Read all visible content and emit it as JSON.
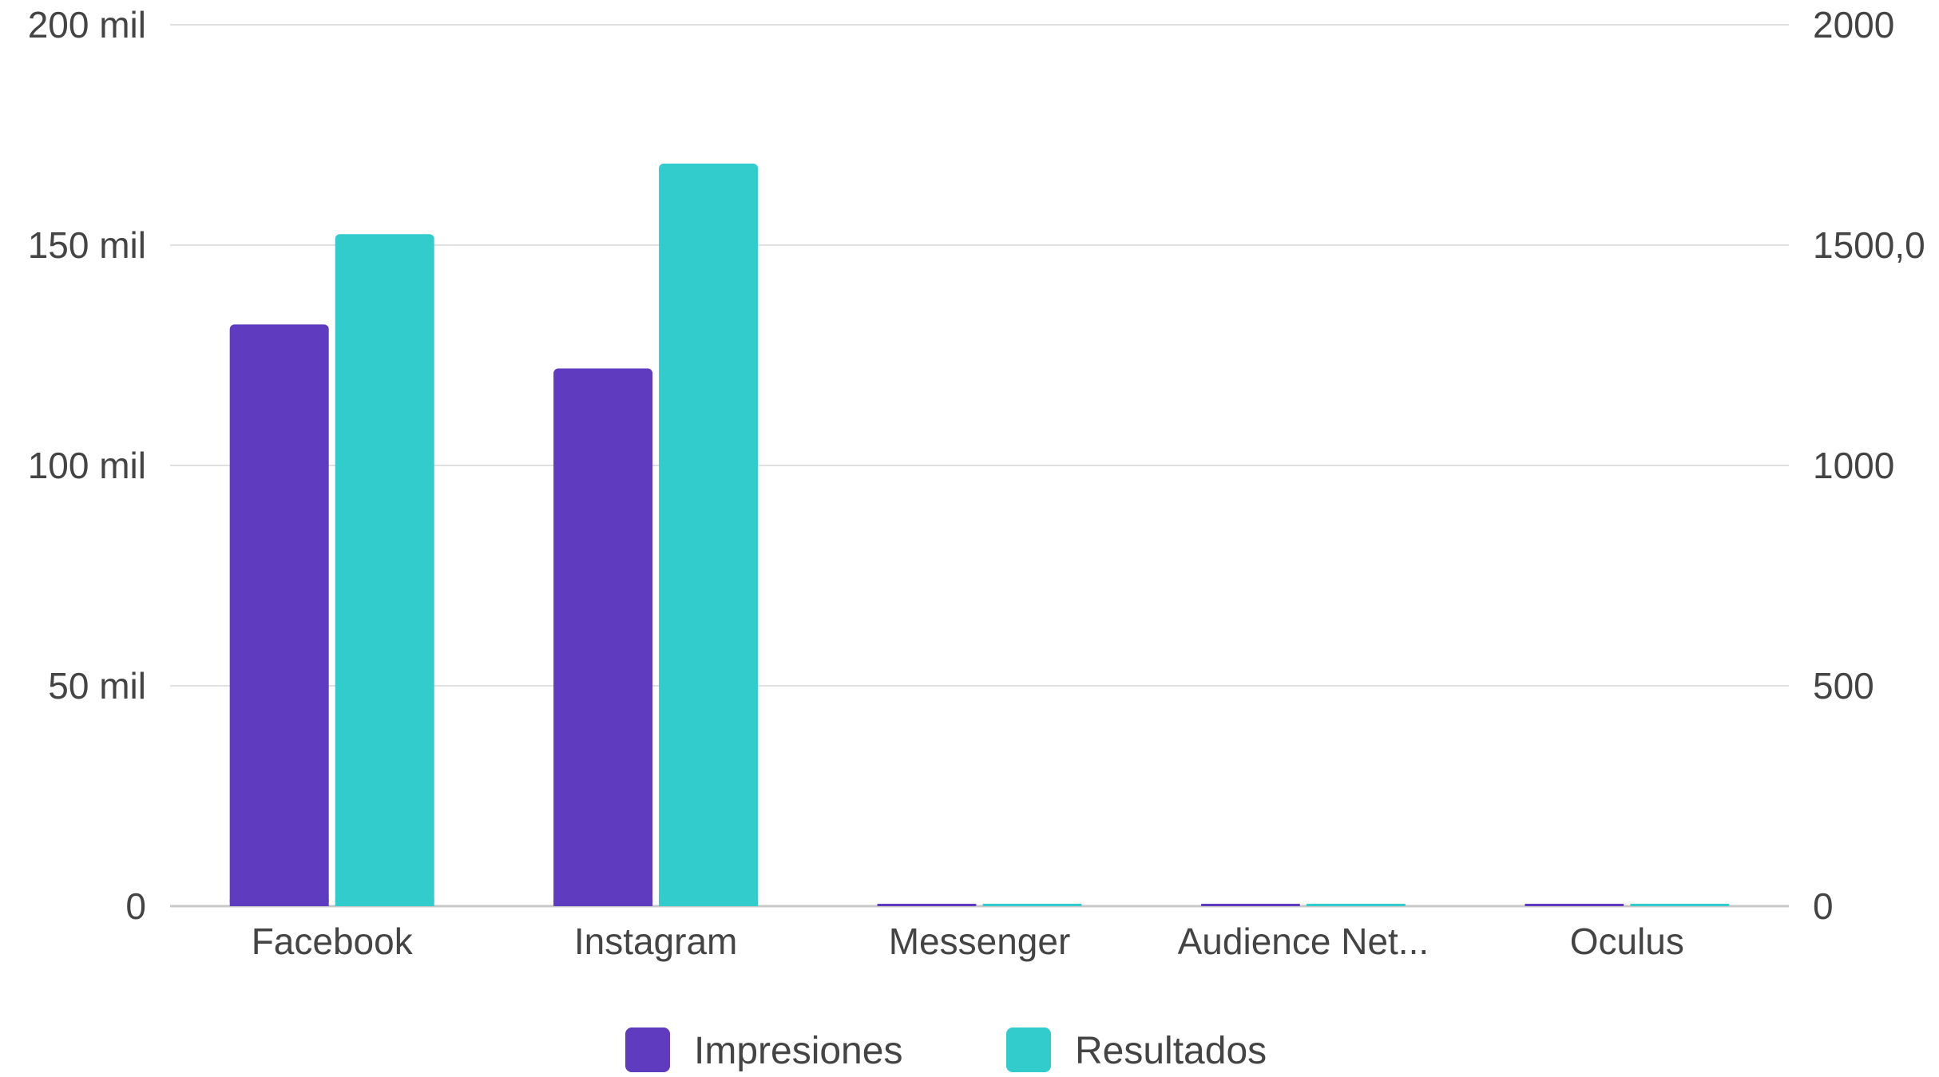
{
  "chart_data": {
    "type": "bar",
    "categories": [
      "Facebook",
      "Instagram",
      "Messenger",
      "Audience Net...",
      "Oculus"
    ],
    "series": [
      {
        "name": "Impresiones",
        "axis": "left",
        "color": "#5e3bbf",
        "values": [
          132000,
          122000,
          0,
          0,
          0
        ]
      },
      {
        "name": "Resultados",
        "axis": "right",
        "color": "#33cccc",
        "values": [
          1525,
          1685,
          0,
          0,
          0
        ]
      }
    ],
    "y_left": {
      "ylim": [
        0,
        200000
      ],
      "ticks": [
        0,
        50000,
        100000,
        150000,
        200000
      ],
      "tick_labels": [
        "0",
        "50 mil",
        "100 mil",
        "150 mil",
        "200 mil"
      ]
    },
    "y_right": {
      "ylim": [
        0,
        2000
      ],
      "ticks": [
        0,
        500,
        1000,
        1500,
        2000
      ],
      "tick_labels": [
        "0",
        "500",
        "1000",
        "1500,0",
        "2000"
      ]
    },
    "grid": true,
    "legend": "bottom-center",
    "title": "",
    "xlabel": "",
    "ylabel": ""
  }
}
